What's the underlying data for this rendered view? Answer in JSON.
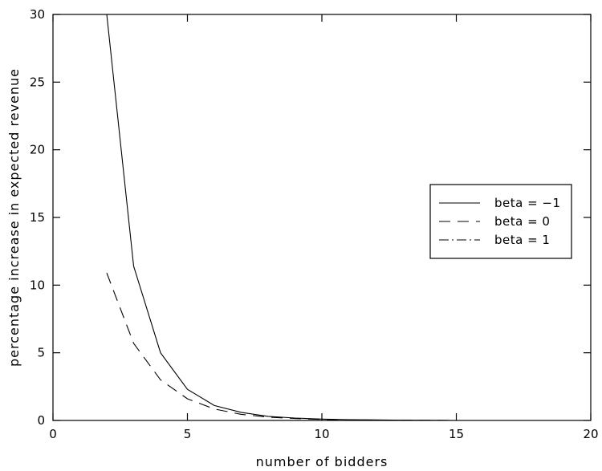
{
  "chart_data": {
    "type": "line",
    "xlabel": "number of bidders",
    "ylabel": "percentage increase in expected revenue",
    "xlim": [
      0,
      20
    ],
    "ylim": [
      0,
      30
    ],
    "xticks": [
      "0",
      "5",
      "10",
      "15",
      "20"
    ],
    "yticks": [
      "0",
      "5",
      "10",
      "15",
      "20",
      "25",
      "30"
    ],
    "grid": false,
    "legend_position": "right",
    "series": [
      {
        "name": "beta = −1",
        "dash": "solid",
        "x": [
          2,
          3,
          4,
          5,
          6,
          7,
          8,
          9,
          10,
          11,
          12,
          13,
          14,
          15
        ],
        "y": [
          30.0,
          11.4,
          5.0,
          2.3,
          1.1,
          0.6,
          0.3,
          0.18,
          0.1,
          0.06,
          0.04,
          0.02,
          0.01,
          0.0
        ]
      },
      {
        "name": "beta = 0",
        "dash": "dashed",
        "x": [
          2,
          3,
          4,
          5,
          6,
          7,
          8,
          9,
          10,
          11,
          12,
          13,
          14,
          15
        ],
        "y": [
          10.9,
          5.7,
          3.0,
          1.6,
          0.85,
          0.45,
          0.25,
          0.14,
          0.08,
          0.05,
          0.03,
          0.02,
          0.01,
          0.0
        ]
      },
      {
        "name": "beta = 1",
        "dash": "dashdot",
        "x": [
          2,
          3,
          4,
          5,
          6,
          7,
          8,
          9,
          10,
          11,
          12,
          13,
          14,
          15
        ],
        "y": [
          0,
          0,
          0,
          0,
          0,
          0,
          0,
          0,
          0,
          0,
          0,
          0,
          0,
          0
        ]
      }
    ]
  }
}
